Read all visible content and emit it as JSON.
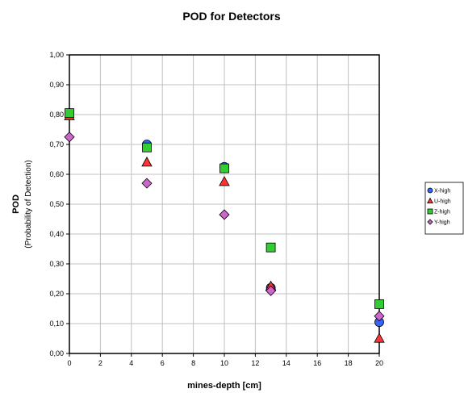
{
  "chart_data": {
    "type": "scatter",
    "title": "POD for Detectors",
    "xlabel": "mines-depth [cm]",
    "ylabel": "POD",
    "ylabel_sub": "(Probability of Detection)",
    "xlim": [
      0,
      20
    ],
    "ylim": [
      0,
      1
    ],
    "x_ticks": [
      "0",
      "2",
      "4",
      "6",
      "8",
      "10",
      "12",
      "14",
      "16",
      "18",
      "20"
    ],
    "y_ticks": [
      "0,00",
      "0,10",
      "0,20",
      "0,30",
      "0,40",
      "0,50",
      "0,60",
      "0,70",
      "0,80",
      "0,90",
      "1,00"
    ],
    "grid": true,
    "legend_position": "right",
    "series": [
      {
        "name": "X-high",
        "marker": "circle",
        "color": "#3366ff",
        "x": [
          0,
          5,
          10,
          13,
          20
        ],
        "y": [
          0.805,
          0.7,
          0.625,
          0.22,
          0.105
        ]
      },
      {
        "name": "U-high",
        "marker": "triangle",
        "color": "#ff3333",
        "x": [
          0,
          5,
          10,
          13,
          20
        ],
        "y": [
          0.795,
          0.64,
          0.575,
          0.225,
          0.05
        ]
      },
      {
        "name": "Z-high",
        "marker": "square",
        "color": "#33cc33",
        "x": [
          0,
          5,
          10,
          13,
          20
        ],
        "y": [
          0.805,
          0.69,
          0.62,
          0.355,
          0.165
        ]
      },
      {
        "name": "Y-high",
        "marker": "diamond",
        "color": "#cc66cc",
        "x": [
          0,
          5,
          10,
          13,
          20
        ],
        "y": [
          0.725,
          0.57,
          0.465,
          0.21,
          0.125
        ]
      }
    ]
  }
}
